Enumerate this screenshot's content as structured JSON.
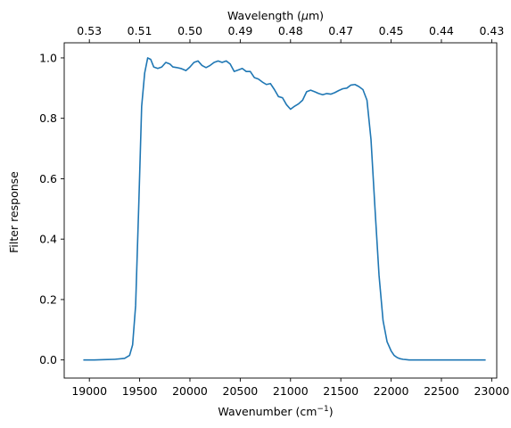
{
  "chart_data": {
    "type": "line",
    "xlabel": "Wavenumber (cm",
    "xlabel_sup": "−1",
    "xlabel_end": ")",
    "ylabel": "Filter response",
    "x2label": "Wavelength (",
    "x2label_mu": "μ",
    "x2label_end": "m)",
    "xlim": [
      18750,
      23050
    ],
    "ylim": [
      -0.06,
      1.05
    ],
    "x_ticks": [
      19000,
      19500,
      20000,
      20500,
      21000,
      21500,
      22000,
      22500,
      23000
    ],
    "x_tick_labels": [
      "19000",
      "19500",
      "20000",
      "20500",
      "21000",
      "21500",
      "22000",
      "22500",
      "23000"
    ],
    "y_ticks": [
      0.0,
      0.2,
      0.4,
      0.6,
      0.8,
      1.0
    ],
    "y_tick_labels": [
      "0.0",
      "0.2",
      "0.4",
      "0.6",
      "0.8",
      "1.0"
    ],
    "x2_tick_labels": [
      "0.53",
      "0.51",
      "0.50",
      "0.49",
      "0.48",
      "0.47",
      "0.45",
      "0.44",
      "0.43"
    ],
    "grid": false,
    "line_color": "#1f77b4",
    "series": [
      {
        "x": [
          18940,
          19050,
          19150,
          19250,
          19350,
          19400,
          19430,
          19460,
          19490,
          19520,
          19550,
          19580,
          19610,
          19640,
          19680,
          19720,
          19760,
          19800,
          19830,
          19870,
          19910,
          19960,
          20000,
          20040,
          20080,
          20120,
          20160,
          20200,
          20240,
          20280,
          20320,
          20360,
          20400,
          20440,
          20480,
          20520,
          20560,
          20600,
          20640,
          20680,
          20720,
          20760,
          20800,
          20840,
          20880,
          20920,
          20960,
          21000,
          21040,
          21080,
          21120,
          21160,
          21200,
          21240,
          21280,
          21320,
          21360,
          21400,
          21440,
          21480,
          21520,
          21560,
          21600,
          21640,
          21680,
          21720,
          21760,
          21800,
          21840,
          21880,
          21920,
          21960,
          22000,
          22030,
          22060,
          22090,
          22120,
          22150,
          22180,
          22210,
          22250,
          22290,
          22330,
          22370,
          22420,
          22480,
          22550,
          22650,
          22800,
          22940
        ],
        "y": [
          0.0,
          0.0,
          0.001,
          0.002,
          0.005,
          0.015,
          0.05,
          0.18,
          0.5,
          0.84,
          0.95,
          1.0,
          0.995,
          0.97,
          0.965,
          0.97,
          0.985,
          0.98,
          0.97,
          0.968,
          0.965,
          0.958,
          0.97,
          0.985,
          0.99,
          0.975,
          0.968,
          0.975,
          0.985,
          0.99,
          0.985,
          0.99,
          0.98,
          0.955,
          0.96,
          0.965,
          0.955,
          0.955,
          0.935,
          0.93,
          0.92,
          0.912,
          0.915,
          0.895,
          0.872,
          0.868,
          0.845,
          0.83,
          0.84,
          0.848,
          0.86,
          0.888,
          0.893,
          0.888,
          0.882,
          0.878,
          0.882,
          0.88,
          0.885,
          0.892,
          0.898,
          0.9,
          0.91,
          0.912,
          0.905,
          0.895,
          0.86,
          0.73,
          0.5,
          0.28,
          0.13,
          0.06,
          0.03,
          0.015,
          0.008,
          0.004,
          0.002,
          0.001,
          0.0,
          0.0,
          0.0,
          0.0,
          0.0,
          0.0,
          0.0,
          0.0,
          0.0,
          0.0,
          0.0,
          0.0
        ]
      }
    ]
  }
}
